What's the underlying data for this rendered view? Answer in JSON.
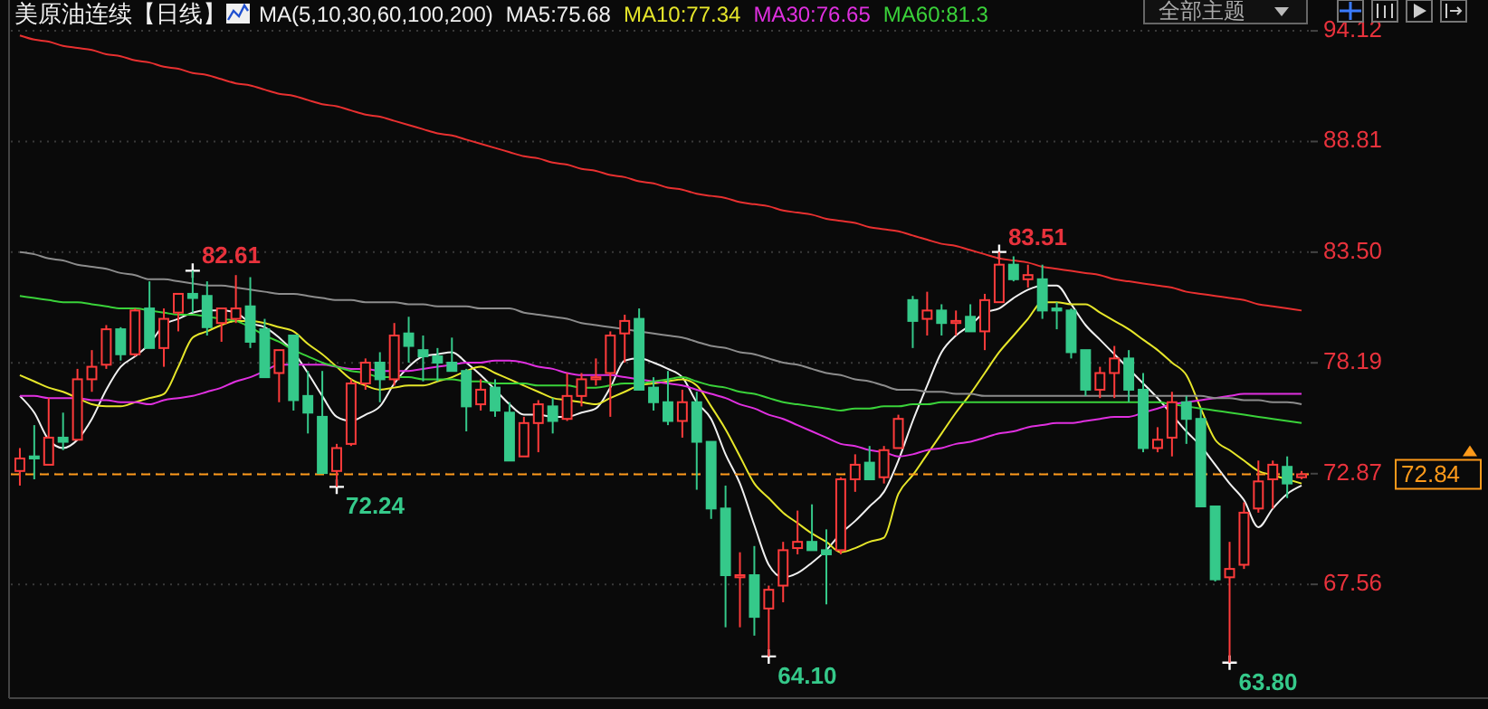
{
  "chart_data": {
    "type": "candlestick",
    "title": "美原油连续【日线】",
    "legend_title": "MA(5,10,30,60,100,200)",
    "legend": "top",
    "grid": "y",
    "tick_labels": "y",
    "categories": [
      null,
      null,
      null,
      null,
      null,
      null,
      null,
      null,
      null,
      null,
      null,
      null,
      null,
      null,
      null,
      null,
      null,
      null,
      null,
      null,
      null,
      null,
      null,
      null,
      null,
      null,
      null,
      null,
      null,
      null,
      null,
      null,
      null,
      null,
      null,
      null,
      null,
      null,
      null,
      null,
      null,
      null,
      null,
      null,
      null,
      null,
      null,
      null,
      null,
      null,
      null,
      null,
      null,
      null,
      null,
      null,
      null,
      null,
      null,
      null,
      null,
      null,
      null,
      null,
      null,
      null,
      null,
      null,
      null,
      null,
      null,
      null,
      null,
      null,
      null,
      null,
      null,
      null,
      null,
      null,
      null,
      null,
      null,
      null,
      null,
      null,
      null,
      null,
      null,
      null
    ],
    "ylim": [
      62.1,
      95.6
    ],
    "yticks": [
      94.12,
      88.81,
      {
        "value": 83.5,
        "label": "83.50"
      },
      78.19,
      72.87,
      67.56
    ],
    "ohlc": [
      [
        73.0,
        74.1,
        72.3,
        73.6
      ],
      [
        73.7,
        75.2,
        72.6,
        73.6
      ],
      [
        73.3,
        76.5,
        73.3,
        74.6
      ],
      [
        74.6,
        75.8,
        74.0,
        74.4
      ],
      [
        74.5,
        77.9,
        74.5,
        77.4
      ],
      [
        77.4,
        78.8,
        76.8,
        78.0
      ],
      [
        78.1,
        80.0,
        77.9,
        79.8
      ],
      [
        79.8,
        79.9,
        78.3,
        78.6
      ],
      [
        78.6,
        80.8,
        78.5,
        80.7
      ],
      [
        80.8,
        82.1,
        78.9,
        78.9
      ],
      [
        78.9,
        80.8,
        78.0,
        80.3
      ],
      [
        80.6,
        81.5,
        79.7,
        81.5
      ],
      [
        81.5,
        82.61,
        80.6,
        81.3
      ],
      [
        81.4,
        82.1,
        79.5,
        79.9
      ],
      [
        80.1,
        80.8,
        79.2,
        80.8
      ],
      [
        80.3,
        82.4,
        80.1,
        80.8
      ],
      [
        80.9,
        82.3,
        78.9,
        79.2
      ],
      [
        79.8,
        80.3,
        77.5,
        77.5
      ],
      [
        77.7,
        78.8,
        76.3,
        78.8
      ],
      [
        79.5,
        79.5,
        75.9,
        76.4
      ],
      [
        76.6,
        77.8,
        74.8,
        75.8
      ],
      [
        75.6,
        77.8,
        72.9,
        72.9
      ],
      [
        73.0,
        74.3,
        72.24,
        74.1
      ],
      [
        74.3,
        77.4,
        74.2,
        77.2
      ],
      [
        77.2,
        78.4,
        76.9,
        78.2
      ],
      [
        78.2,
        78.7,
        76.3,
        77.4
      ],
      [
        77.4,
        80.1,
        77.1,
        79.5
      ],
      [
        79.6,
        80.4,
        78.2,
        79.0
      ],
      [
        78.8,
        79.5,
        77.3,
        78.5
      ],
      [
        78.5,
        78.9,
        77.3,
        78.2
      ],
      [
        78.2,
        79.4,
        77.8,
        77.8
      ],
      [
        77.8,
        77.9,
        74.9,
        76.1
      ],
      [
        76.2,
        77.4,
        75.9,
        76.9
      ],
      [
        77.0,
        77.4,
        75.6,
        75.9
      ],
      [
        75.8,
        76.3,
        73.5,
        73.5
      ],
      [
        73.7,
        75.6,
        73.7,
        75.3
      ],
      [
        75.3,
        76.4,
        73.9,
        76.2
      ],
      [
        76.1,
        76.5,
        74.8,
        75.4
      ],
      [
        75.5,
        77.7,
        75.4,
        76.6
      ],
      [
        76.6,
        77.7,
        76.1,
        77.4
      ],
      [
        77.4,
        78.4,
        77.1,
        77.5
      ],
      [
        77.7,
        79.7,
        75.6,
        79.5
      ],
      [
        79.6,
        80.5,
        78.2,
        80.2
      ],
      [
        80.3,
        80.8,
        76.9,
        76.9
      ],
      [
        77.0,
        77.5,
        75.9,
        76.3
      ],
      [
        76.3,
        77.8,
        75.2,
        75.4
      ],
      [
        75.4,
        76.9,
        74.6,
        76.3
      ],
      [
        76.3,
        76.8,
        72.1,
        74.4
      ],
      [
        74.4,
        74.4,
        70.7,
        71.2
      ],
      [
        71.2,
        72.3,
        65.5,
        68.0
      ],
      [
        67.9,
        69.1,
        65.5,
        68.0
      ],
      [
        68.0,
        69.4,
        65.1,
        66.0
      ],
      [
        66.4,
        67.5,
        64.1,
        67.3
      ],
      [
        67.5,
        69.6,
        66.7,
        69.2
      ],
      [
        69.3,
        71.1,
        69.0,
        69.6
      ],
      [
        69.6,
        71.4,
        69.2,
        69.2
      ],
      [
        69.2,
        70.2,
        66.6,
        69.0
      ],
      [
        69.2,
        72.7,
        69.0,
        72.6
      ],
      [
        72.6,
        73.8,
        72.0,
        73.3
      ],
      [
        73.4,
        74.2,
        72.6,
        72.6
      ],
      [
        72.7,
        74.2,
        72.4,
        74.0
      ],
      [
        74.1,
        75.7,
        74.1,
        75.5
      ],
      [
        81.2,
        81.4,
        78.9,
        80.2
      ],
      [
        80.3,
        81.6,
        79.5,
        80.7
      ],
      [
        80.7,
        81.0,
        79.5,
        80.1
      ],
      [
        80.1,
        80.7,
        79.5,
        80.2
      ],
      [
        80.4,
        81.0,
        79.7,
        79.7
      ],
      [
        79.7,
        81.5,
        78.8,
        81.2
      ],
      [
        81.1,
        83.51,
        81.1,
        82.9
      ],
      [
        82.9,
        83.3,
        82.1,
        82.2
      ],
      [
        82.2,
        82.9,
        81.8,
        82.4
      ],
      [
        82.2,
        82.9,
        80.3,
        80.7
      ],
      [
        80.8,
        81.1,
        79.8,
        80.7
      ],
      [
        80.7,
        80.8,
        78.4,
        78.7
      ],
      [
        78.8,
        78.8,
        76.6,
        76.9
      ],
      [
        76.9,
        78.0,
        76.5,
        77.7
      ],
      [
        77.7,
        79.0,
        76.5,
        78.4
      ],
      [
        78.4,
        78.8,
        76.3,
        76.9
      ],
      [
        76.9,
        77.7,
        73.9,
        74.1
      ],
      [
        74.1,
        75.1,
        73.9,
        74.5
      ],
      [
        74.6,
        76.8,
        73.7,
        76.3
      ],
      [
        76.3,
        76.6,
        74.3,
        75.5
      ],
      [
        75.5,
        76.0,
        71.3,
        71.3
      ],
      [
        71.3,
        71.3,
        67.7,
        67.8
      ],
      [
        67.9,
        69.6,
        63.8,
        68.3
      ],
      [
        68.5,
        71.5,
        68.3,
        71.0
      ],
      [
        71.2,
        73.5,
        71.0,
        72.5
      ],
      [
        72.6,
        73.5,
        71.2,
        73.3
      ],
      [
        73.2,
        73.7,
        71.7,
        72.4
      ],
      [
        72.7,
        73.0,
        72.6,
        72.84
      ]
    ],
    "series": [
      {
        "name": "MA5:75.68",
        "type": "line",
        "color": "#f0f0f0",
        "values": [
          76.6,
          75.8,
          74.5,
          74.1,
          74.5,
          75.5,
          76.9,
          78.0,
          78.5,
          79.1,
          80.0,
          80.3,
          80.6,
          80.7,
          80.7,
          80.6,
          80.1,
          79.9,
          79.4,
          78.7,
          77.7,
          76.6,
          75.6,
          75.4,
          75.7,
          76.1,
          77.2,
          78.0,
          78.5,
          78.6,
          78.7,
          78.2,
          77.6,
          76.9,
          76.2,
          75.7,
          75.7,
          75.6,
          75.6,
          75.8,
          76.0,
          77.0,
          78.3,
          78.4,
          78.2,
          77.9,
          77.5,
          76.3,
          75.5,
          73.8,
          72.4,
          70.4,
          68.5,
          67.9,
          68.1,
          68.6,
          69.2,
          70.0,
          70.6,
          71.3,
          72.0,
          73.5,
          75.4,
          77.1,
          78.7,
          79.5,
          80.0,
          80.6,
          80.8,
          81.3,
          81.7,
          81.9,
          81.9,
          81.0,
          80.0,
          79.3,
          78.6,
          77.9,
          77.2,
          76.5,
          75.7,
          74.9,
          74.2,
          73.3,
          72.4,
          71.6,
          70.3,
          71.2,
          71.9,
          72.3
        ]
      },
      {
        "name": "MA10:77.34",
        "type": "line",
        "color": "#e6e62a",
        "values": [
          77.6,
          77.3,
          77.0,
          76.8,
          76.5,
          76.2,
          76.1,
          76.1,
          76.3,
          76.5,
          76.7,
          78.0,
          79.4,
          79.7,
          80.0,
          80.2,
          80.2,
          80.1,
          79.9,
          79.7,
          79.1,
          78.6,
          78.0,
          77.4,
          77.1,
          76.9,
          77.0,
          77.1,
          77.1,
          77.3,
          77.5,
          77.8,
          78.0,
          77.7,
          77.4,
          77.1,
          76.8,
          76.5,
          76.4,
          76.3,
          76.2,
          76.5,
          76.8,
          77.1,
          77.2,
          77.3,
          77.4,
          77.1,
          76.1,
          75.0,
          73.7,
          72.4,
          71.7,
          71.0,
          70.5,
          70.0,
          69.6,
          69.1,
          69.3,
          69.6,
          69.8,
          71.9,
          72.8,
          73.8,
          74.8,
          75.8,
          76.7,
          77.7,
          78.7,
          79.5,
          80.3,
          81.1,
          81.1,
          81.0,
          81.0,
          80.6,
          80.2,
          79.8,
          79.3,
          78.8,
          78.2,
          77.6,
          76.0,
          74.5,
          74.0,
          73.5,
          73.0,
          72.8,
          72.6,
          72.4
        ]
      },
      {
        "name": "MA30:76.65",
        "type": "line",
        "color": "#e030e0",
        "values": [
          76.6,
          76.6,
          76.5,
          76.5,
          76.5,
          76.4,
          76.4,
          76.3,
          76.3,
          76.2,
          76.4,
          76.5,
          76.6,
          76.8,
          77.0,
          77.3,
          77.5,
          77.8,
          78.1,
          78.1,
          78.1,
          78.1,
          78.0,
          77.9,
          77.9,
          77.8,
          77.8,
          77.8,
          77.9,
          78.0,
          78.1,
          78.2,
          78.2,
          78.3,
          78.3,
          78.2,
          78.0,
          77.9,
          77.7,
          77.6,
          77.6,
          77.6,
          77.5,
          77.4,
          77.3,
          77.2,
          77.1,
          76.9,
          76.7,
          76.5,
          76.2,
          76.0,
          75.7,
          75.5,
          75.2,
          74.9,
          74.6,
          74.3,
          74.2,
          74.0,
          73.9,
          73.7,
          73.8,
          74.0,
          74.1,
          74.3,
          74.4,
          74.6,
          74.8,
          74.9,
          75.1,
          75.2,
          75.3,
          75.3,
          75.4,
          75.5,
          75.6,
          75.6,
          75.8,
          76.0,
          76.2,
          76.3,
          76.4,
          76.5,
          76.6,
          76.7,
          76.7,
          76.7,
          76.7,
          76.7
        ]
      },
      {
        "name": "MA60:81.3",
        "type": "line",
        "color": "#3ad23a",
        "values": [
          81.4,
          81.3,
          81.2,
          81.1,
          81.1,
          81.0,
          80.9,
          80.8,
          80.8,
          80.7,
          80.6,
          80.5,
          80.5,
          80.4,
          80.3,
          80.2,
          79.9,
          79.5,
          79.2,
          78.8,
          78.5,
          78.2,
          78.0,
          77.8,
          77.7,
          77.5,
          77.5,
          77.5,
          77.4,
          77.4,
          77.4,
          77.3,
          77.3,
          77.2,
          77.2,
          77.2,
          77.1,
          77.1,
          77.1,
          77.0,
          77.0,
          77.1,
          77.2,
          77.2,
          77.3,
          77.4,
          77.5,
          77.3,
          77.1,
          77.0,
          76.8,
          76.7,
          76.5,
          76.3,
          76.2,
          76.1,
          76.0,
          75.9,
          76.0,
          76.0,
          76.1,
          76.1,
          76.2,
          76.2,
          76.3,
          76.3,
          76.3,
          76.3,
          76.3,
          76.3,
          76.3,
          76.3,
          76.3,
          76.3,
          76.3,
          76.3,
          76.3,
          76.3,
          76.3,
          76.3,
          76.2,
          76.1,
          76.0,
          75.9,
          75.8,
          75.7,
          75.6,
          75.5,
          75.4,
          75.3
        ]
      },
      {
        "type": "line",
        "color": "#8c8c8c",
        "values": [
          83.5,
          83.4,
          83.2,
          83.1,
          82.9,
          82.8,
          82.7,
          82.5,
          82.4,
          82.2,
          82.2,
          82.1,
          82.0,
          81.9,
          81.9,
          81.8,
          81.7,
          81.6,
          81.5,
          81.5,
          81.4,
          81.3,
          81.2,
          81.2,
          81.1,
          81.1,
          81.1,
          81.0,
          81.0,
          80.9,
          80.9,
          80.9,
          80.8,
          80.8,
          80.8,
          80.6,
          80.5,
          80.4,
          80.3,
          80.1,
          80.0,
          79.9,
          79.8,
          79.7,
          79.6,
          79.5,
          79.4,
          79.2,
          79.0,
          78.9,
          78.7,
          78.6,
          78.4,
          78.2,
          78.1,
          77.9,
          77.7,
          77.6,
          77.4,
          77.3,
          77.1,
          76.9,
          76.9,
          76.8,
          76.8,
          76.7,
          76.7,
          76.6,
          76.6,
          76.6,
          76.6,
          76.6,
          76.6,
          76.6,
          76.6,
          76.6,
          76.6,
          76.6,
          76.6,
          76.6,
          76.6,
          76.6,
          76.6,
          76.5,
          76.5,
          76.4,
          76.4,
          76.3,
          76.3,
          76.2
        ]
      },
      {
        "type": "line",
        "color": "#e83030",
        "values": [
          93.9,
          93.7,
          93.6,
          93.4,
          93.3,
          93.2,
          93.0,
          92.9,
          92.7,
          92.6,
          92.4,
          92.3,
          92.1,
          92.0,
          91.8,
          91.6,
          91.5,
          91.3,
          91.1,
          91.0,
          90.8,
          90.6,
          90.5,
          90.3,
          90.1,
          90.0,
          89.8,
          89.6,
          89.4,
          89.2,
          89.1,
          88.9,
          88.7,
          88.5,
          88.3,
          88.1,
          88.0,
          87.8,
          87.7,
          87.5,
          87.4,
          87.2,
          87.1,
          86.9,
          86.8,
          86.6,
          86.5,
          86.3,
          86.2,
          86.1,
          85.9,
          85.8,
          85.7,
          85.5,
          85.4,
          85.3,
          85.1,
          85.0,
          84.9,
          84.7,
          84.6,
          84.5,
          84.3,
          84.1,
          83.9,
          83.8,
          83.6,
          83.4,
          83.2,
          83.1,
          83.0,
          82.8,
          82.7,
          82.6,
          82.5,
          82.4,
          82.2,
          82.1,
          82.0,
          81.9,
          81.8,
          81.6,
          81.5,
          81.4,
          81.3,
          81.2,
          81.0,
          80.9,
          80.8,
          80.7
        ]
      }
    ],
    "ref_lines": [
      {
        "axis": "y",
        "value": 72.84,
        "label": "72.84",
        "color": "#ff9a1a",
        "line_style": "dashed"
      }
    ],
    "annotations": [
      "全部主题",
      "82.61",
      "72.24",
      "64.10",
      "83.51",
      "63.80"
    ]
  }
}
